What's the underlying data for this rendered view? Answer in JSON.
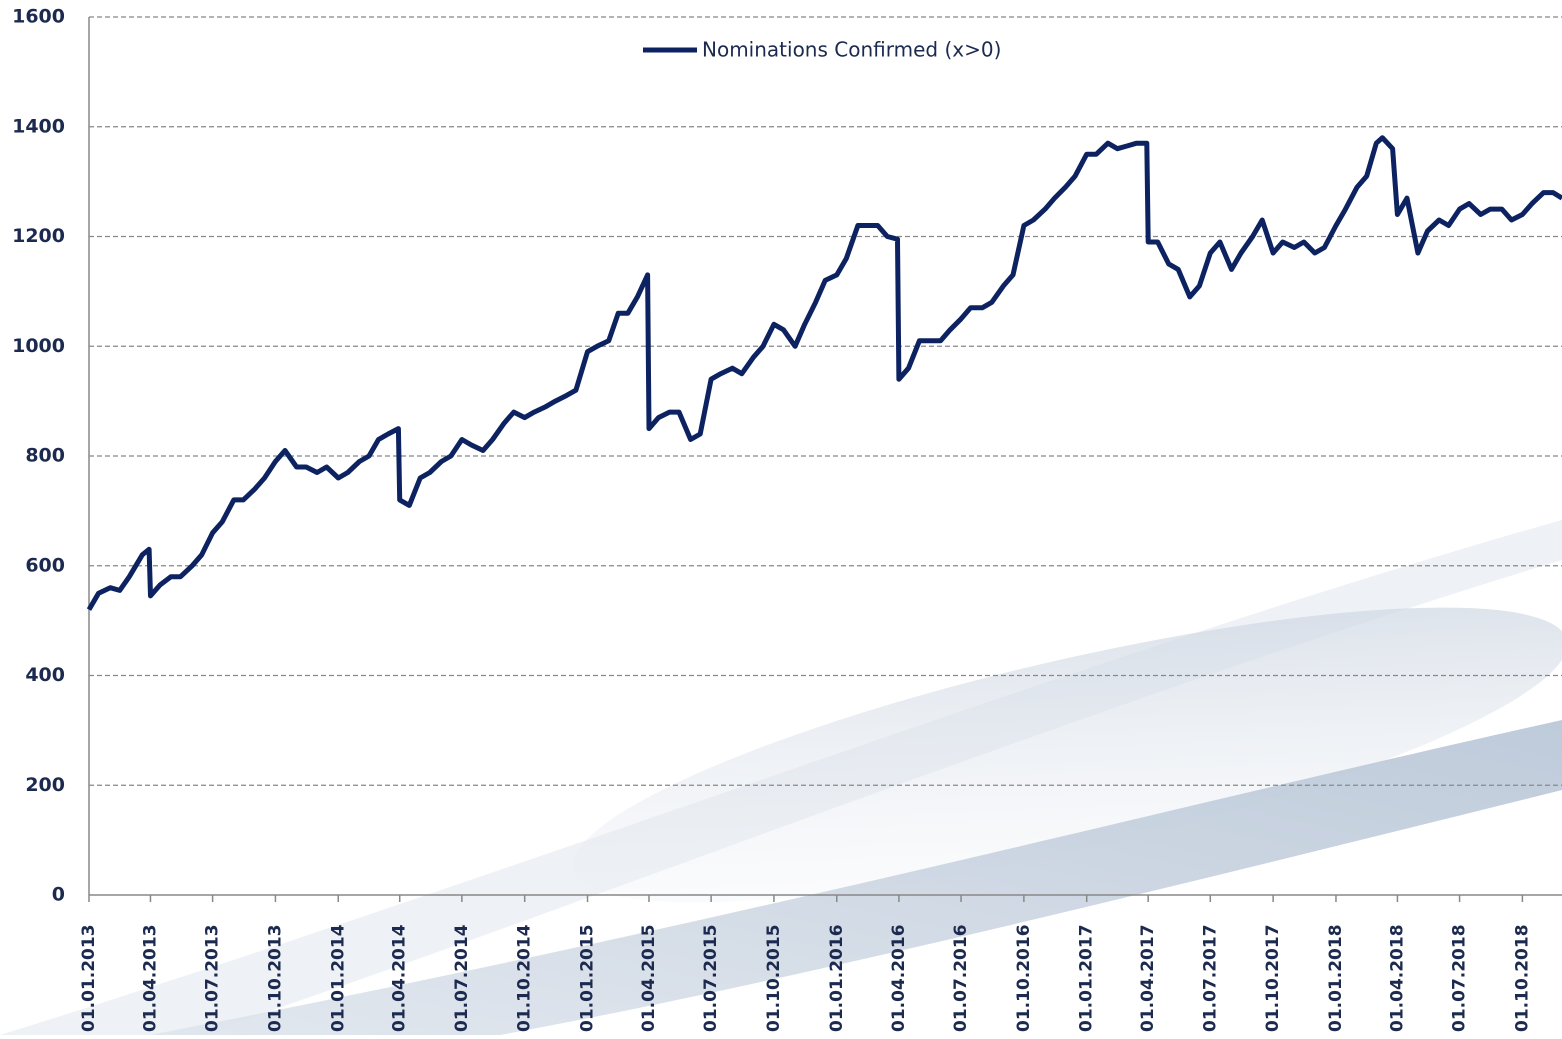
{
  "chart_data": {
    "type": "line",
    "legend": "top",
    "x": [
      "01.01.2013",
      "15.01.2013",
      "01.02.2013",
      "15.02.2013",
      "01.03.2013",
      "20.03.2013",
      "30.03.2013",
      "01.04.2013",
      "15.04.2013",
      "01.05.2013",
      "15.05.2013",
      "01.06.2013",
      "15.06.2013",
      "01.07.2013",
      "15.07.2013",
      "01.08.2013",
      "15.08.2013",
      "01.09.2013",
      "15.09.2013",
      "01.10.2013",
      "15.10.2013",
      "01.11.2013",
      "15.11.2013",
      "01.12.2013",
      "15.12.2013",
      "01.01.2014",
      "15.01.2014",
      "01.02.2014",
      "15.02.2014",
      "01.03.2014",
      "15.03.2014",
      "30.03.2014",
      "01.04.2014",
      "15.04.2014",
      "01.05.2014",
      "15.05.2014",
      "01.06.2014",
      "15.06.2014",
      "01.07.2014",
      "15.07.2014",
      "01.08.2014",
      "15.08.2014",
      "01.09.2014",
      "15.09.2014",
      "01.10.2014",
      "15.10.2014",
      "01.11.2014",
      "15.11.2014",
      "01.12.2014",
      "15.12.2014",
      "01.01.2015",
      "15.01.2015",
      "01.02.2015",
      "15.02.2015",
      "01.03.2015",
      "15.03.2015",
      "30.03.2015",
      "01.04.2015",
      "15.04.2015",
      "01.05.2015",
      "15.05.2015",
      "01.06.2015",
      "15.06.2015",
      "01.07.2015",
      "15.07.2015",
      "01.08.2015",
      "15.08.2015",
      "01.09.2015",
      "15.09.2015",
      "01.10.2015",
      "15.10.2015",
      "01.11.2015",
      "15.11.2015",
      "01.12.2015",
      "15.12.2015",
      "01.01.2016",
      "15.01.2016",
      "01.02.2016",
      "15.02.2016",
      "01.03.2016",
      "15.03.2016",
      "30.03.2016",
      "01.04.2016",
      "15.04.2016",
      "01.05.2016",
      "15.05.2016",
      "01.06.2016",
      "15.06.2016",
      "01.07.2016",
      "15.07.2016",
      "01.08.2016",
      "15.08.2016",
      "01.09.2016",
      "15.09.2016",
      "01.10.2016",
      "15.10.2016",
      "01.11.2016",
      "15.11.2016",
      "01.12.2016",
      "15.12.2016",
      "01.01.2017",
      "15.01.2017",
      "01.02.2017",
      "15.02.2017",
      "01.03.2017",
      "15.03.2017",
      "30.03.2017",
      "01.04.2017",
      "15.04.2017",
      "01.05.2017",
      "15.05.2017",
      "01.06.2017",
      "15.06.2017",
      "01.07.2017",
      "15.07.2017",
      "01.08.2017",
      "15.08.2017",
      "01.09.2017",
      "15.09.2017",
      "01.10.2017",
      "15.10.2017",
      "01.11.2017",
      "15.11.2017",
      "01.12.2017",
      "15.12.2017",
      "01.01.2018",
      "15.01.2018",
      "01.02.2018",
      "15.02.2018",
      "01.03.2018",
      "10.03.2018",
      "25.03.2018",
      "01.04.2018",
      "15.04.2018",
      "01.05.2018",
      "15.05.2018",
      "01.06.2018",
      "15.06.2018",
      "01.07.2018",
      "15.07.2018",
      "01.08.2018",
      "15.08.2018",
      "01.09.2018",
      "15.09.2018",
      "01.10.2018",
      "15.10.2018",
      "01.11.2018",
      "15.11.2018",
      "28.11.2018"
    ],
    "series": [
      {
        "name": "Nominations Confirmed (x>0)",
        "color": "#0d2260",
        "values": [
          520,
          550,
          560,
          555,
          580,
          620,
          630,
          545,
          565,
          580,
          580,
          600,
          620,
          660,
          680,
          720,
          720,
          740,
          760,
          790,
          810,
          780,
          780,
          770,
          780,
          760,
          770,
          790,
          800,
          830,
          840,
          850,
          720,
          710,
          760,
          770,
          790,
          800,
          830,
          820,
          810,
          830,
          860,
          880,
          870,
          880,
          890,
          900,
          910,
          920,
          990,
          1000,
          1010,
          1060,
          1060,
          1090,
          1130,
          850,
          870,
          880,
          880,
          830,
          840,
          940,
          950,
          960,
          950,
          980,
          1000,
          1040,
          1030,
          1000,
          1040,
          1080,
          1120,
          1130,
          1160,
          1220,
          1220,
          1220,
          1200,
          1195,
          940,
          960,
          1010,
          1010,
          1010,
          1030,
          1050,
          1070,
          1070,
          1080,
          1110,
          1130,
          1220,
          1230,
          1250,
          1270,
          1290,
          1310,
          1350,
          1350,
          1370,
          1360,
          1365,
          1370,
          1370,
          1190,
          1190,
          1150,
          1140,
          1090,
          1110,
          1170,
          1190,
          1140,
          1170,
          1200,
          1230,
          1170,
          1190,
          1180,
          1190,
          1170,
          1180,
          1220,
          1250,
          1290,
          1310,
          1370,
          1380,
          1360,
          1240,
          1270,
          1170,
          1210,
          1230,
          1220,
          1250,
          1260,
          1240,
          1250,
          1250,
          1230,
          1240,
          1260,
          1280,
          1280,
          1270
        ]
      }
    ],
    "xlim": [
      "01.01.2013",
      "28.11.2018"
    ],
    "xticks": [
      "01.01.2013",
      "01.04.2013",
      "01.07.2013",
      "01.10.2013",
      "01.01.2014",
      "01.04.2014",
      "01.07.2014",
      "01.10.2014",
      "01.01.2015",
      "01.04.2015",
      "01.07.2015",
      "01.10.2015",
      "01.01.2016",
      "01.04.2016",
      "01.07.2016",
      "01.10.2016",
      "01.01.2017",
      "01.04.2017",
      "01.07.2017",
      "01.10.2017",
      "01.01.2018",
      "01.04.2018",
      "01.07.2018",
      "01.10.2018"
    ],
    "ylim": [
      0,
      1600
    ],
    "yticks": [
      0,
      200,
      400,
      600,
      800,
      1000,
      1200,
      1400,
      1600
    ],
    "grid": true
  }
}
